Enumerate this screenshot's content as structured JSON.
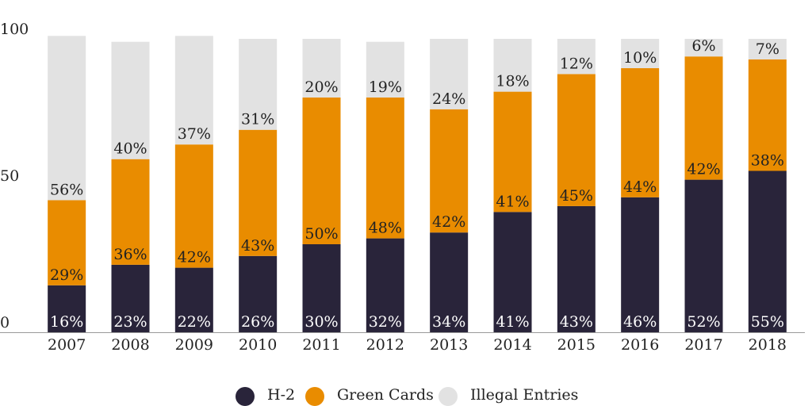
{
  "chart_data": {
    "type": "stacked-bar",
    "categories": [
      "2007",
      "2008",
      "2009",
      "2010",
      "2011",
      "2012",
      "2013",
      "2014",
      "2015",
      "2016",
      "2017",
      "2018"
    ],
    "series": [
      {
        "name": "H-2",
        "color": "#29243a",
        "values": [
          16,
          23,
          22,
          26,
          30,
          32,
          34,
          41,
          43,
          46,
          52,
          55
        ],
        "value_labels": [
          "16%",
          "23%",
          "22%",
          "26%",
          "30%",
          "32%",
          "34%",
          "41%",
          "43%",
          "46%",
          "52%",
          "55%"
        ]
      },
      {
        "name": "Green Cards",
        "color": "#e98c00",
        "values": [
          29,
          36,
          42,
          43,
          50,
          48,
          42,
          41,
          45,
          44,
          42,
          38
        ],
        "value_labels": [
          "29%",
          "36%",
          "42%",
          "43%",
          "50%",
          "48%",
          "42%",
          "41%",
          "45%",
          "44%",
          "42%",
          "38%"
        ]
      },
      {
        "name": "Illegal Entries",
        "color": "#e2e2e2",
        "values": [
          56,
          40,
          37,
          31,
          20,
          19,
          24,
          18,
          12,
          10,
          6,
          7
        ],
        "value_labels": [
          "56%",
          "40%",
          "37%",
          "31%",
          "20%",
          "19%",
          "24%",
          "18%",
          "12%",
          "10%",
          "6%",
          "7%"
        ]
      }
    ],
    "ylim": [
      0,
      100
    ],
    "yticks": [
      0,
      50,
      100
    ],
    "legend": "bottom"
  }
}
